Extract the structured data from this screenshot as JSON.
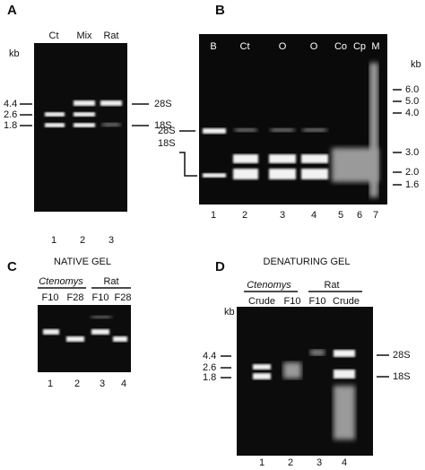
{
  "panels": [
    {
      "label": "A",
      "unit": "kb",
      "lanes": [
        "Ct",
        "Mix",
        "Rat"
      ],
      "size_markers": [
        "4.4",
        "2.6",
        "1.8"
      ],
      "rrna_markers": [
        "28S",
        "18S"
      ],
      "lane_numbers": [
        "1",
        "2",
        "3"
      ]
    },
    {
      "label": "B",
      "unit": "kb",
      "lanes": [
        "B",
        "Ct",
        "O",
        "O",
        "Co",
        "Cp",
        "M"
      ],
      "size_markers": [
        "6.0",
        "5.0",
        "4.0",
        "3.0",
        "2.0",
        "1.6"
      ],
      "rrna_markers": [
        "28S",
        "18S"
      ],
      "lane_numbers": [
        "1",
        "2",
        "3",
        "4",
        "5",
        "6",
        "7"
      ]
    },
    {
      "label": "C",
      "title": "NATIVE GEL",
      "groups": [
        "Ctenomys",
        "Rat"
      ],
      "lanes": [
        "F10",
        "F28",
        "F10",
        "F28"
      ],
      "lane_numbers": [
        "1",
        "2",
        "3",
        "4"
      ]
    },
    {
      "label": "D",
      "title": "DENATURING GEL",
      "unit": "kb",
      "groups": [
        "Ctenomys",
        "Rat"
      ],
      "lanes": [
        "Crude",
        "F10",
        "F10",
        "Crude"
      ],
      "size_markers": [
        "4.4",
        "2.6",
        "1.8"
      ],
      "rrna_markers": [
        "28S",
        "18S"
      ],
      "lane_numbers": [
        "1",
        "2",
        "3",
        "4"
      ]
    }
  ]
}
